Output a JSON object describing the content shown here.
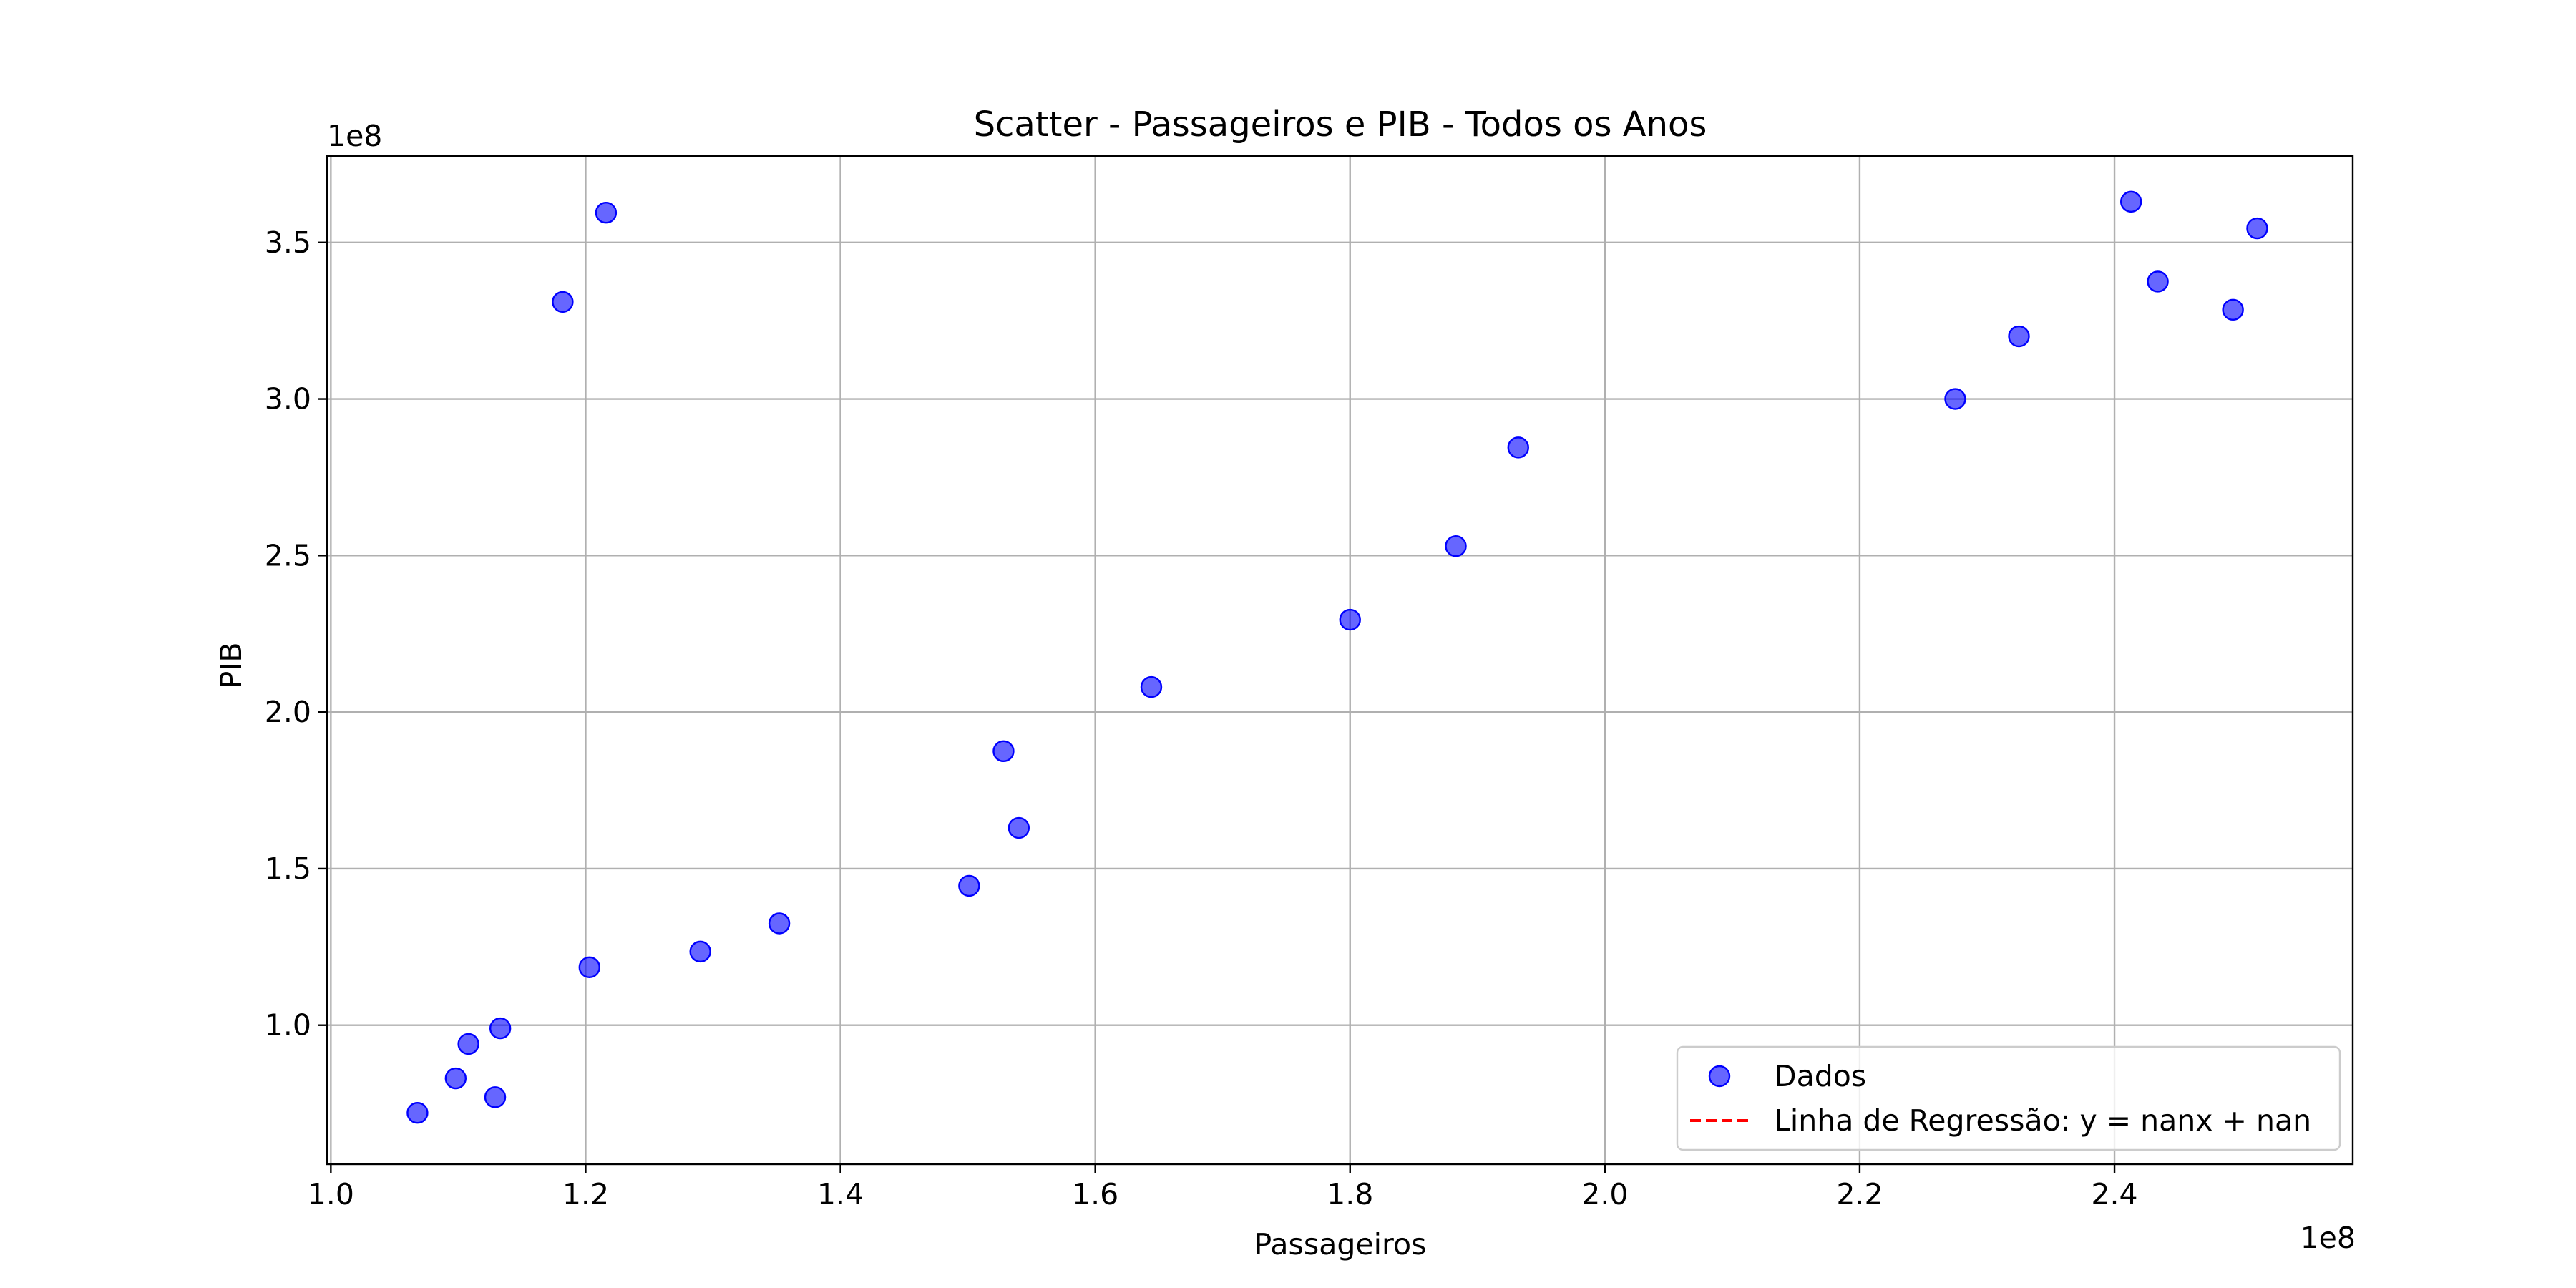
{
  "chart_data": {
    "type": "scatter",
    "title": "Scatter - Passageiros e PIB - Todos os Anos",
    "xlabel": "Passageiros",
    "ylabel": "PIB",
    "x_offset_label": "1e8",
    "y_offset_label": "1e8",
    "xlim": [
      0.997,
      2.587
    ],
    "ylim": [
      0.556,
      3.776
    ],
    "xticks": [
      1.0,
      1.2,
      1.4,
      1.6,
      1.8,
      2.0,
      2.2,
      2.4
    ],
    "xtick_labels": [
      "1.0",
      "1.2",
      "1.4",
      "1.6",
      "1.8",
      "2.0",
      "2.2",
      "2.4"
    ],
    "yticks": [
      1.0,
      1.5,
      2.0,
      2.5,
      3.0,
      3.5
    ],
    "ytick_labels": [
      "1.0",
      "1.5",
      "2.0",
      "2.5",
      "3.0",
      "3.5"
    ],
    "grid": true,
    "legend_position": "lower-right",
    "series": [
      {
        "name": "Dados",
        "color": "#0000ff",
        "points": [
          {
            "x": 1.068,
            "y": 0.72
          },
          {
            "x": 1.098,
            "y": 0.83
          },
          {
            "x": 1.108,
            "y": 0.94
          },
          {
            "x": 1.129,
            "y": 0.77
          },
          {
            "x": 1.133,
            "y": 0.99
          },
          {
            "x": 1.182,
            "y": 3.31
          },
          {
            "x": 1.203,
            "y": 1.185
          },
          {
            "x": 1.216,
            "y": 3.595
          },
          {
            "x": 1.29,
            "y": 1.235
          },
          {
            "x": 1.352,
            "y": 1.325
          },
          {
            "x": 1.501,
            "y": 1.445
          },
          {
            "x": 1.528,
            "y": 1.875
          },
          {
            "x": 1.54,
            "y": 1.63
          },
          {
            "x": 1.644,
            "y": 2.08
          },
          {
            "x": 1.8,
            "y": 2.295
          },
          {
            "x": 1.883,
            "y": 2.53
          },
          {
            "x": 1.932,
            "y": 2.845
          },
          {
            "x": 2.275,
            "y": 3.0
          },
          {
            "x": 2.325,
            "y": 3.2
          },
          {
            "x": 2.413,
            "y": 3.63
          },
          {
            "x": 2.434,
            "y": 3.375
          },
          {
            "x": 2.493,
            "y": 3.285
          },
          {
            "x": 2.512,
            "y": 3.545
          }
        ]
      },
      {
        "name": "Linha de Regressão: y = nanx + nan",
        "color": "#ff0000",
        "style": "dashed",
        "points": []
      }
    ]
  }
}
